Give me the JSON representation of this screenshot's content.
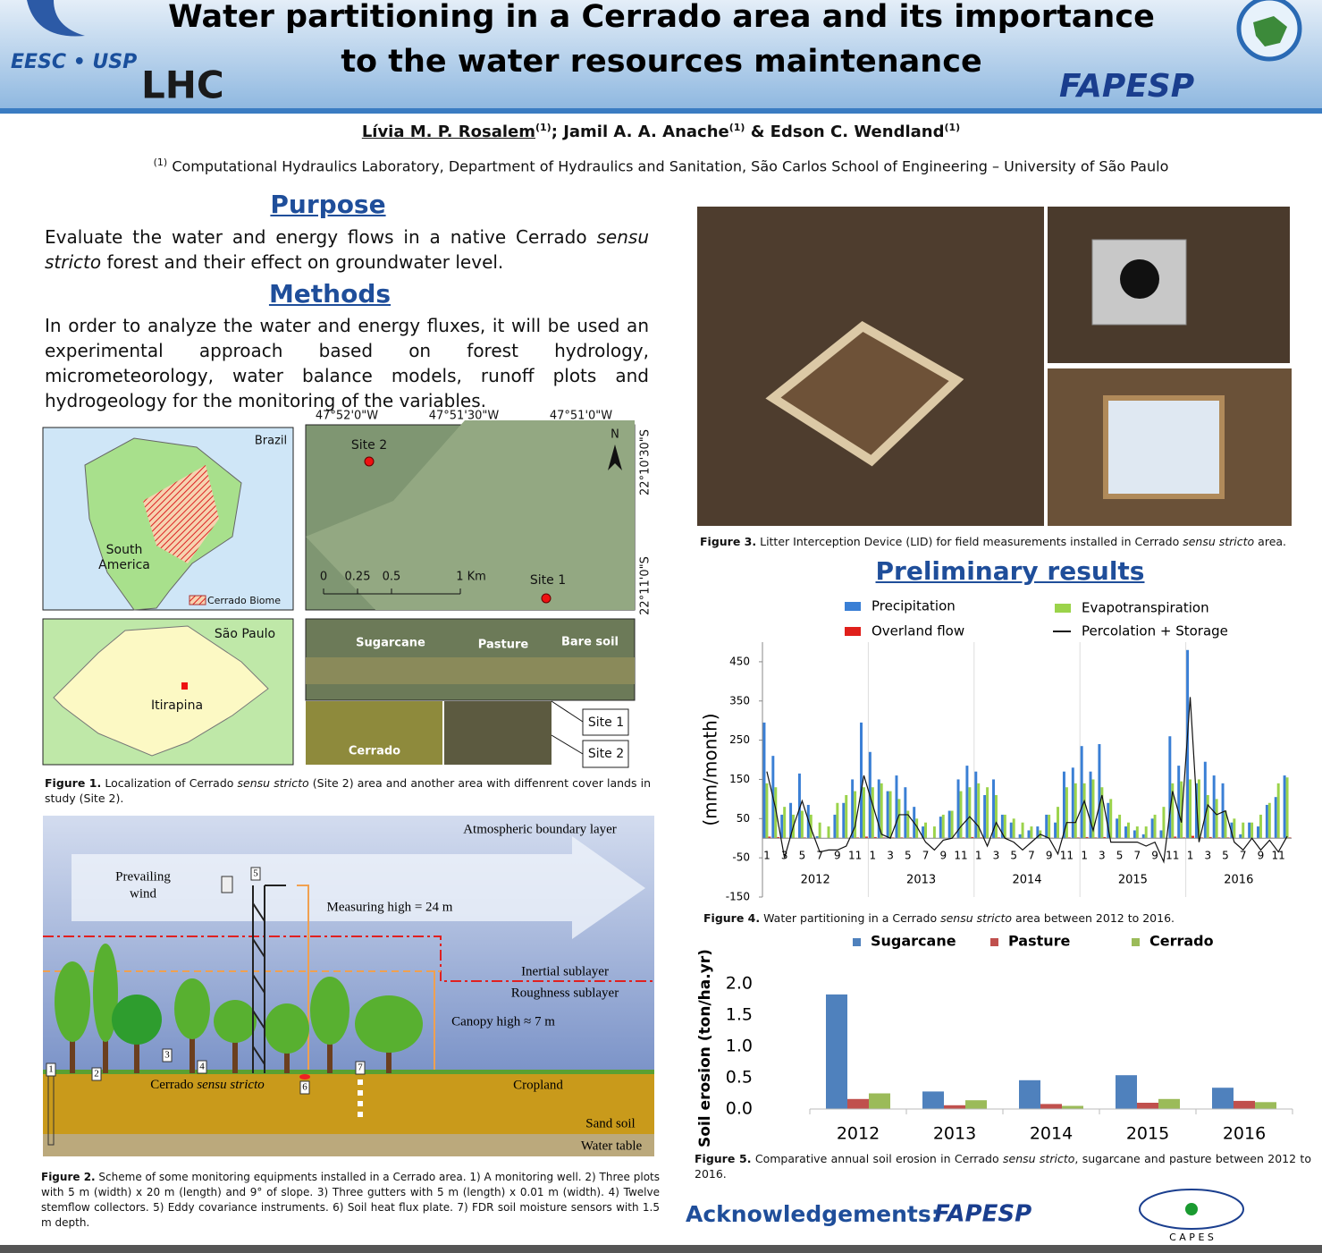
{
  "header": {
    "logos": [
      "EESC • USP",
      "LHC",
      "FAPESP"
    ],
    "title": [
      "Water partitioning in a Cerrado area and its importance",
      "to the water resources maintenance"
    ]
  },
  "authors": {
    "names": [
      "Lívia M. P. Rosalem",
      "Jamil A. A. Anache",
      "Edson C. Wendland"
    ],
    "mark": "(1)",
    "separators": [
      "; ",
      " & "
    ]
  },
  "affiliation": {
    "mark": "(1)",
    "text": " Computational Hydraulics Laboratory, Department of Hydraulics and Sanitation, São Carlos School of Engineering – University of São Paulo"
  },
  "purpose": {
    "heading": "Purpose",
    "text": [
      "Evaluate the water and energy flows in a native Cerrado ",
      "sensu stricto",
      " forest and their effect on groundwater level."
    ]
  },
  "methods": {
    "heading": "Methods",
    "text": "In order to analyze the water and energy fluxes, it will be used an experimental approach based on forest hydrology, micrometeorology, water balance models, runoff plots and hydrogeology for the monitoring of the variables."
  },
  "figure1": {
    "labels": [
      "Brazil",
      "South",
      "America",
      "Cerrado Biome",
      "São Paulo",
      "Itirapina",
      "47°52'0\"W",
      "47°51'30\"W",
      "47°51'0\"W",
      "22°10'30\"S",
      "22°11'0\"S",
      "Site 2",
      "Site 1",
      "N",
      "0",
      "0.25",
      "0.5",
      "1 Km",
      "Sugarcane",
      "Pasture",
      "Bare soil",
      "Cerrado",
      "Site 1",
      "Site 2"
    ],
    "caption": {
      "label": "Figure 1.",
      "text": [
        " Localization of Cerrado ",
        "sensu stricto",
        " (Site 2) area and  another area with diffenrent cover lands in study (Site 2)."
      ]
    }
  },
  "figure2": {
    "labels": [
      "Atmospheric boundary layer",
      "Prevailing",
      "wind",
      "Measuring high = 24 m",
      "Inertial sublayer",
      "Roughness sublayer",
      "Canopy high ≈ 7 m",
      "Cropland",
      "Sand soil",
      "Water table"
    ],
    "zone": [
      "Cerrado ",
      "sensu stricto"
    ],
    "markers": [
      1,
      2,
      3,
      4,
      5,
      6,
      7
    ],
    "caption": {
      "label": "Figure 2.",
      "text": [
        " Scheme of some monitoring equipments installed in a Cerrado area. 1) A monitoring well. 2) Three plots with 5 m (width) x 20 m (length) and 9° of slope. 3) Three gutters with 5 m (length) x 0.01 m (width). 4) Twelve stemflow collectors. 5) Eddy covariance instruments. 6) Soil heat flux plate. 7) FDR soil moisture sensors with 1.5 m depth."
      ]
    }
  },
  "figure3": {
    "caption": {
      "label": "Figure 3.",
      "text": [
        " Litter Interception Device (LID) for field measurements installed in Cerrado ",
        "sensu stricto",
        " area."
      ]
    }
  },
  "results": {
    "heading": "Preliminary results"
  },
  "figure4": {
    "caption": {
      "label": "Figure 4.",
      "text": [
        " Water partitioning in a Cerrado ",
        "sensu stricto",
        " area between 2012 to 2016."
      ]
    }
  },
  "figure5": {
    "caption": {
      "label": "Figure 5.",
      "text": [
        " Comparative annual soil erosion in Cerrado ",
        "sensu stricto",
        ", sugarcane and pasture between 2012 to 2016."
      ]
    }
  },
  "acknowledgements": {
    "heading": "Acknowledgements:",
    "logos": [
      "FAPESP",
      "C A P E S"
    ]
  },
  "chart_data": [
    {
      "type": "bar",
      "y_label": "(mm/month)",
      "categories": [
        1,
        null,
        3,
        null,
        5,
        null,
        7,
        null,
        9,
        null,
        11,
        null,
        1,
        null,
        3,
        null,
        5,
        null,
        7,
        null,
        9,
        null,
        11,
        null,
        1,
        null,
        3,
        null,
        5,
        null,
        7,
        null,
        9,
        null,
        11,
        null,
        1,
        null,
        3,
        null,
        5,
        null,
        7,
        null,
        9,
        null,
        11,
        null,
        1,
        null,
        3,
        null,
        5,
        null,
        7,
        null,
        9,
        null,
        11,
        null
      ],
      "year_labels": [
        2012,
        2013,
        2014,
        2015,
        2016
      ],
      "ylim": [
        -150,
        500
      ],
      "yticks": [
        -150,
        -50,
        50,
        150,
        250,
        350,
        450
      ],
      "series": [
        {
          "name": "Precipitation",
          "type": "bar",
          "color": "#3a7fd5",
          "values": [
            295,
            210,
            60,
            90,
            165,
            85,
            5,
            0,
            60,
            90,
            150,
            295,
            220,
            150,
            120,
            160,
            130,
            80,
            30,
            0,
            55,
            70,
            150,
            185,
            170,
            110,
            150,
            60,
            40,
            10,
            20,
            30,
            60,
            40,
            170,
            180,
            235,
            170,
            240,
            90,
            50,
            30,
            20,
            10,
            50,
            20,
            260,
            185,
            480,
            140,
            195,
            160,
            140,
            40,
            10,
            40,
            30,
            85,
            105,
            160
          ]
        },
        {
          "name": "Evapotranspiration",
          "type": "bar",
          "color": "#9bd34a",
          "values": [
            140,
            130,
            80,
            60,
            70,
            60,
            40,
            30,
            90,
            110,
            120,
            130,
            130,
            140,
            120,
            100,
            70,
            50,
            40,
            30,
            60,
            70,
            120,
            130,
            140,
            130,
            110,
            60,
            50,
            40,
            30,
            20,
            60,
            80,
            130,
            140,
            140,
            150,
            130,
            100,
            60,
            40,
            30,
            30,
            60,
            80,
            140,
            145,
            150,
            150,
            110,
            100,
            70,
            50,
            40,
            40,
            60,
            90,
            140,
            155
          ]
        },
        {
          "name": "Overland flow",
          "type": "bar",
          "color": "#e0201b",
          "values": [
            4,
            3,
            1,
            1,
            2,
            1,
            0,
            0,
            1,
            1,
            2,
            4,
            3,
            2,
            2,
            2,
            2,
            1,
            0,
            0,
            1,
            1,
            2,
            3,
            2,
            1,
            2,
            1,
            0,
            0,
            0,
            0,
            1,
            0,
            2,
            2,
            3,
            2,
            3,
            1,
            1,
            0,
            0,
            0,
            1,
            0,
            4,
            2,
            6,
            2,
            3,
            2,
            2,
            0,
            0,
            0,
            0,
            1,
            1,
            2
          ]
        },
        {
          "name": "Percolation + Storage",
          "type": "line",
          "color": "#111111",
          "values": [
            170,
            75,
            -50,
            30,
            95,
            25,
            -35,
            -30,
            -30,
            -20,
            30,
            160,
            85,
            10,
            0,
            60,
            60,
            30,
            -10,
            -30,
            -5,
            0,
            30,
            55,
            30,
            -20,
            40,
            0,
            -10,
            -30,
            -10,
            10,
            0,
            -40,
            40,
            40,
            95,
            20,
            110,
            -10,
            -10,
            -10,
            -10,
            -20,
            -10,
            -60,
            120,
            40,
            360,
            -10,
            85,
            60,
            70,
            -10,
            -30,
            0,
            -30,
            -5,
            -35,
            5
          ]
        }
      ]
    },
    {
      "type": "bar",
      "y_label": "Soil erosion (ton/ha.yr)",
      "categories": [
        2012,
        2013,
        2014,
        2015,
        2016
      ],
      "ylim": [
        0,
        2.2
      ],
      "yticks": [
        {
          "value": 0,
          "label": "0.0"
        },
        {
          "value": 0.5,
          "label": "0.5"
        },
        {
          "value": 1,
          "label": "1.0"
        },
        {
          "value": 1.5,
          "label": "1.5"
        },
        {
          "value": 2,
          "label": "2.0"
        }
      ],
      "series": [
        {
          "name": "Sugarcane",
          "color": "#4f81bd",
          "values": [
            1.83,
            0.28,
            0.46,
            0.54,
            0.34
          ]
        },
        {
          "name": "Pasture",
          "color": "#c0504d",
          "values": [
            0.16,
            0.06,
            0.08,
            0.1,
            0.13
          ]
        },
        {
          "name": "Cerrado",
          "color": "#9bbb59",
          "values": [
            0.25,
            0.14,
            0.05,
            0.16,
            0.11
          ]
        }
      ]
    }
  ]
}
